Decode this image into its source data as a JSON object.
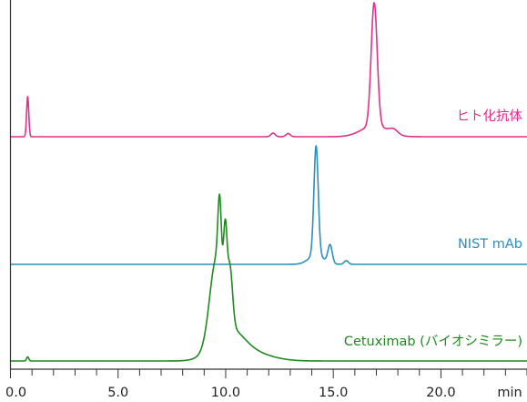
{
  "chart_data": {
    "type": "line",
    "title": "",
    "xlabel": "",
    "ylabel": "",
    "x_unit": "min",
    "xlim": [
      0,
      24
    ],
    "x_major_ticks": [
      0,
      5,
      10,
      15,
      20
    ],
    "x_tick_labels": [
      "0.0",
      "5.0",
      "10.0",
      "15.0",
      "20.0"
    ],
    "x_minor_step": 1,
    "grid": false,
    "layout": "stacked-offset",
    "series": [
      {
        "name": "ヒト化抗体",
        "color": "#e0308a",
        "baseline": 0.02,
        "peaks": [
          {
            "x": 0.8,
            "height": 0.44,
            "width": 0.05
          },
          {
            "x": 12.2,
            "height": 0.04,
            "width": 0.1
          },
          {
            "x": 12.9,
            "height": 0.035,
            "width": 0.1
          },
          {
            "x": 16.9,
            "height": 1.35,
            "width": 0.14
          },
          {
            "x": 16.9,
            "height": 0.12,
            "width": 0.6
          },
          {
            "x": 17.8,
            "height": 0.05,
            "width": 0.2
          }
        ]
      },
      {
        "name": "NIST mAb",
        "color": "#2a8fc0",
        "baseline": 0.0,
        "peaks": [
          {
            "x": 14.2,
            "height": 1.2,
            "width": 0.1
          },
          {
            "x": 14.2,
            "height": 0.1,
            "width": 0.35
          },
          {
            "x": 14.85,
            "height": 0.2,
            "width": 0.1
          },
          {
            "x": 15.6,
            "height": 0.04,
            "width": 0.1
          }
        ]
      },
      {
        "name": "Cetuximab (バイオシミラー)",
        "color": "#1f8a1f",
        "baseline": 0.0,
        "peaks": [
          {
            "x": 0.8,
            "height": 0.03,
            "width": 0.05
          },
          {
            "x": 9.55,
            "height": 0.58,
            "width": 0.3
          },
          {
            "x": 9.72,
            "height": 0.52,
            "width": 0.08
          },
          {
            "x": 9.98,
            "height": 0.52,
            "width": 0.08
          },
          {
            "x": 10.2,
            "height": 0.4,
            "width": 0.12
          },
          {
            "x": 10.1,
            "height": 0.22,
            "width": 0.7
          },
          {
            "x": 11.3,
            "height": 0.05,
            "width": 0.9
          }
        ]
      }
    ]
  }
}
